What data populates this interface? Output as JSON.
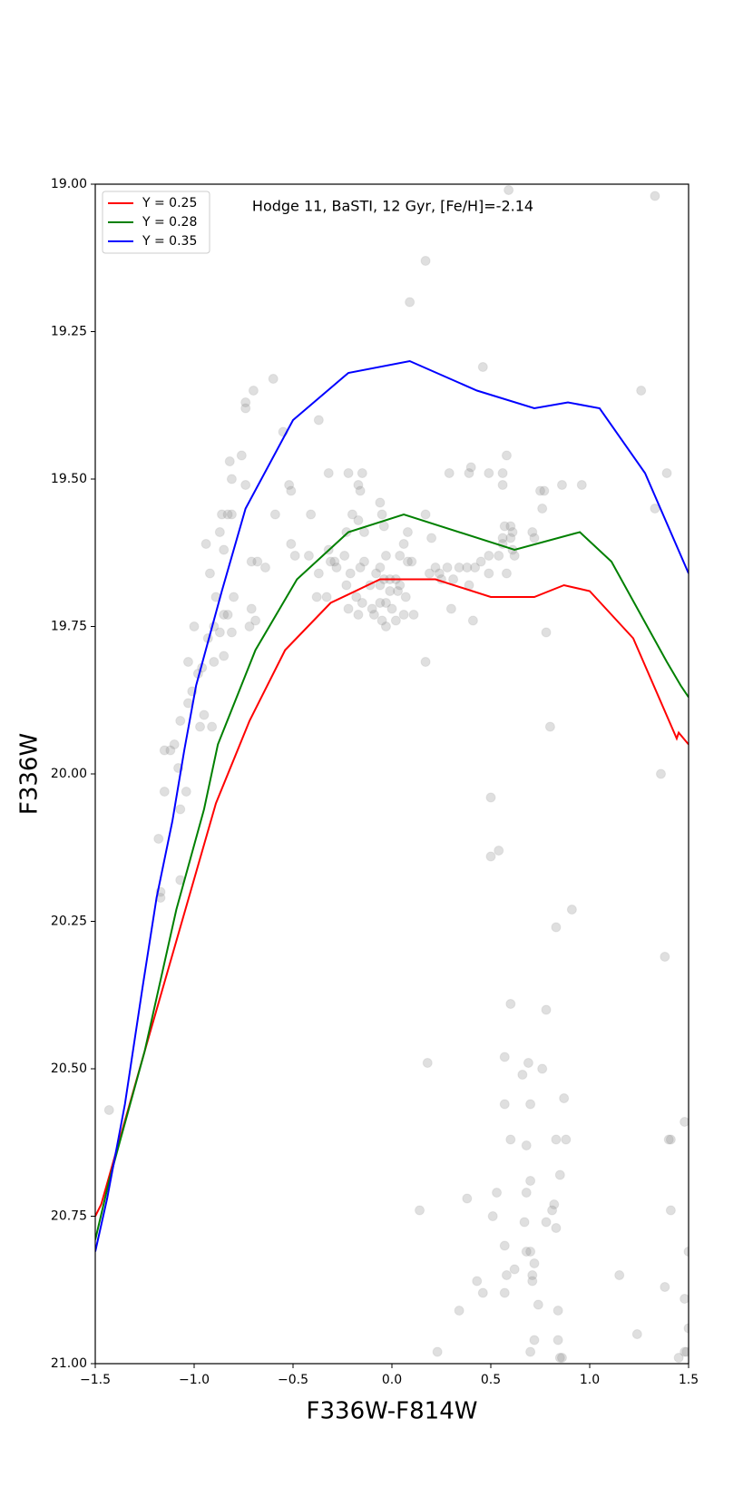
{
  "chart_data": {
    "type": "scatter",
    "annotation": "Hodge 11, BaSTI, 12 Gyr, [Fe/H]=-2.14",
    "xlabel": "F336W-F814W",
    "ylabel": "F336W",
    "xlim": [
      -1.5,
      1.5
    ],
    "ylim": [
      21.0,
      19.0
    ],
    "inverted_y": true,
    "legend": "upper left",
    "xticks": [
      {
        "value": -1.5,
        "label": "−1.5"
      },
      {
        "value": -1.0,
        "label": "−1.0"
      },
      {
        "value": -0.5,
        "label": "−0.5"
      },
      {
        "value": 0.0,
        "label": "0.0"
      },
      0.5,
      {
        "value": 1.0,
        "label": "1.0"
      },
      1.5
    ],
    "yticks": [
      {
        "value": 19.0,
        "label": "19.00"
      },
      19.25,
      {
        "value": 19.5,
        "label": "19.50"
      },
      19.75,
      {
        "value": 20.0,
        "label": "20.00"
      },
      20.25,
      {
        "value": 20.5,
        "label": "20.50"
      },
      20.75,
      {
        "value": 21.0,
        "label": "21.00"
      }
    ],
    "points": {
      "color": "#808080",
      "x": [
        0.59,
        1.33,
        0.17,
        0.09,
        0.46,
        -0.6,
        -0.7,
        -0.74,
        -0.74,
        1.26,
        -0.37,
        -0.55,
        0.58,
        -0.76,
        -0.82,
        -0.32,
        -0.22,
        -0.15,
        0.29,
        0.4,
        0.39,
        0.49,
        0.56,
        1.39,
        -0.74,
        -0.52,
        -0.17,
        0.86,
        0.96,
        -0.51,
        0.56,
        -0.16,
        0.75,
        0.77,
        -0.06,
        -0.59,
        -0.41,
        -0.83,
        -0.81,
        -0.86,
        -0.2,
        -0.05,
        0.17,
        0.76,
        1.33,
        -0.17,
        0.57,
        0.6,
        -0.23,
        0.71,
        -0.04,
        -0.87,
        0.08,
        -0.32,
        -0.51,
        -0.14,
        0.56,
        0.6,
        0.61,
        0.72,
        0.56,
        0.2,
        0.06,
        -0.85,
        0.61,
        0.62,
        -0.42,
        -0.24,
        -0.03,
        -0.49,
        -0.31,
        -0.14,
        0.04,
        0.1,
        -0.71,
        -0.68,
        -0.29,
        -0.28,
        -0.06,
        0.08,
        0.45,
        0.49,
        0.54,
        -0.16,
        -0.21,
        -0.37,
        -0.64,
        0.34,
        0.38,
        0.42,
        0.49,
        0.58,
        0.22,
        0.28,
        0.24,
        0.19,
        0.25,
        0.31,
        0.39,
        -0.08,
        -0.04,
        -0.01,
        0.02,
        0.04,
        -0.11,
        -0.06,
        -0.01,
        0.03,
        0.07,
        -0.03,
        0.0,
        -0.06,
        -0.1,
        -0.15,
        -0.18,
        -0.23,
        -0.33,
        -0.38,
        -0.22,
        -0.17,
        -0.09,
        -0.05,
        -0.03,
        0.02,
        0.06,
        0.11,
        0.3,
        0.41,
        -0.69,
        -0.72,
        -0.83,
        -0.85,
        -0.9,
        -1.0,
        -0.87,
        -0.81,
        -0.71,
        -0.8,
        -0.89,
        -0.92,
        -0.94,
        -0.81,
        -0.93,
        -0.85,
        -0.9,
        -1.03,
        -0.96,
        -0.98,
        -1.01,
        -1.03,
        -0.95,
        -0.97,
        -0.91,
        -1.07,
        -1.1,
        -1.12,
        -1.15,
        -1.08,
        0.78,
        0.17,
        0.8,
        0.5,
        1.36,
        -1.15,
        -1.04,
        -1.07,
        -1.18,
        0.5,
        0.54,
        -1.07,
        -1.17,
        -1.17,
        0.91,
        0.83,
        1.38,
        0.6,
        0.78,
        0.57,
        0.18,
        0.69,
        0.76,
        0.66,
        -1.43,
        0.57,
        0.87,
        0.7,
        1.48,
        0.6,
        0.83,
        0.88,
        1.41,
        1.4,
        0.68,
        0.85,
        0.7,
        0.68,
        0.53,
        0.38,
        0.82,
        1.41,
        0.14,
        0.81,
        0.78,
        0.51,
        0.67,
        0.83,
        0.57,
        0.7,
        0.68,
        1.5,
        0.72,
        0.62,
        0.58,
        0.71,
        0.71,
        0.43,
        1.15,
        1.38,
        0.46,
        0.57,
        1.48,
        0.74,
        0.84,
        0.34,
        1.5,
        1.24,
        0.72,
        0.84,
        0.23,
        0.7,
        1.45,
        1.48,
        1.49,
        0.85,
        0.86
      ],
      "y": [
        19.01,
        19.02,
        19.13,
        19.2,
        19.31,
        19.33,
        19.35,
        19.37,
        19.38,
        19.35,
        19.4,
        19.42,
        19.46,
        19.46,
        19.47,
        19.49,
        19.49,
        19.49,
        19.49,
        19.48,
        19.49,
        19.49,
        19.49,
        19.49,
        19.51,
        19.51,
        19.51,
        19.51,
        19.51,
        19.52,
        19.51,
        19.52,
        19.52,
        19.52,
        19.54,
        19.56,
        19.56,
        19.56,
        19.56,
        19.56,
        19.56,
        19.56,
        19.56,
        19.55,
        19.55,
        19.57,
        19.58,
        19.58,
        19.59,
        19.59,
        19.58,
        19.59,
        19.59,
        19.62,
        19.61,
        19.59,
        19.6,
        19.6,
        19.59,
        19.6,
        19.61,
        19.6,
        19.61,
        19.62,
        19.62,
        19.63,
        19.63,
        19.63,
        19.63,
        19.63,
        19.64,
        19.64,
        19.63,
        19.64,
        19.64,
        19.64,
        19.64,
        19.65,
        19.65,
        19.64,
        19.64,
        19.63,
        19.63,
        19.65,
        19.66,
        19.66,
        19.65,
        19.65,
        19.65,
        19.65,
        19.66,
        19.66,
        19.65,
        19.65,
        19.66,
        19.66,
        19.67,
        19.67,
        19.68,
        19.66,
        19.67,
        19.67,
        19.67,
        19.68,
        19.68,
        19.68,
        19.69,
        19.69,
        19.7,
        19.71,
        19.72,
        19.71,
        19.72,
        19.71,
        19.7,
        19.68,
        19.7,
        19.7,
        19.72,
        19.73,
        19.73,
        19.74,
        19.75,
        19.74,
        19.73,
        19.73,
        19.72,
        19.74,
        19.74,
        19.75,
        19.73,
        19.73,
        19.75,
        19.75,
        19.76,
        19.76,
        19.72,
        19.7,
        19.7,
        19.66,
        19.61,
        19.5,
        19.77,
        19.8,
        19.81,
        19.81,
        19.82,
        19.83,
        19.86,
        19.88,
        19.9,
        19.92,
        19.92,
        19.91,
        19.95,
        19.96,
        19.96,
        19.99,
        19.76,
        19.81,
        19.92,
        20.04,
        20.0,
        20.03,
        20.03,
        20.06,
        20.11,
        20.14,
        20.13,
        20.18,
        20.2,
        20.21,
        20.23,
        20.26,
        20.31,
        20.39,
        20.4,
        20.48,
        20.49,
        20.49,
        20.5,
        20.51,
        20.57,
        20.56,
        20.55,
        20.56,
        20.59,
        20.62,
        20.62,
        20.62,
        20.62,
        20.62,
        20.63,
        20.68,
        20.69,
        20.71,
        20.71,
        20.72,
        20.73,
        20.74,
        20.74,
        20.74,
        20.76,
        20.75,
        20.76,
        20.77,
        20.8,
        20.81,
        20.81,
        20.81,
        20.83,
        20.84,
        20.85,
        20.85,
        20.86,
        20.86,
        20.85,
        20.87,
        20.88,
        20.88,
        20.89,
        20.9,
        20.91,
        20.91,
        20.94,
        20.95,
        20.96,
        20.96,
        20.98,
        20.98,
        20.99,
        20.98,
        20.98,
        20.99,
        20.99
      ]
    },
    "series": [
      {
        "name": "Y = 0.25",
        "color": "#ff0000",
        "x": [
          -1.5,
          -1.47,
          -1.25,
          -0.89,
          -0.72,
          -0.54,
          -0.31,
          -0.06,
          0.22,
          0.5,
          0.72,
          0.87,
          1.0,
          1.22,
          1.44,
          1.45,
          1.5
        ],
        "values": [
          20.75,
          20.73,
          20.47,
          20.05,
          19.91,
          19.79,
          19.71,
          19.67,
          19.67,
          19.7,
          19.7,
          19.68,
          19.69,
          19.77,
          19.94,
          19.93,
          19.95
        ]
      },
      {
        "name": "Y = 0.28",
        "color": "#008000",
        "x": [
          -1.5,
          -1.43,
          -1.25,
          -1.09,
          -0.95,
          -0.88,
          -0.69,
          -0.48,
          -0.22,
          0.06,
          0.62,
          0.95,
          1.11,
          1.39,
          1.46,
          1.5
        ],
        "values": [
          20.79,
          20.69,
          20.47,
          20.23,
          20.06,
          19.95,
          19.79,
          19.67,
          19.59,
          19.56,
          19.62,
          19.59,
          19.64,
          19.81,
          19.85,
          19.87
        ]
      },
      {
        "name": "Y = 0.35",
        "color": "#0000ff",
        "x": [
          -1.5,
          -1.44,
          -1.35,
          -1.26,
          -1.19,
          -1.11,
          -1.05,
          -0.99,
          -0.86,
          -0.74,
          -0.5,
          -0.22,
          0.09,
          0.43,
          0.72,
          0.89,
          1.05,
          1.28,
          1.5
        ],
        "values": [
          20.81,
          20.72,
          20.56,
          20.36,
          20.21,
          20.08,
          19.96,
          19.85,
          19.69,
          19.55,
          19.4,
          19.32,
          19.3,
          19.35,
          19.38,
          19.37,
          19.38,
          19.49,
          19.66
        ]
      }
    ]
  }
}
